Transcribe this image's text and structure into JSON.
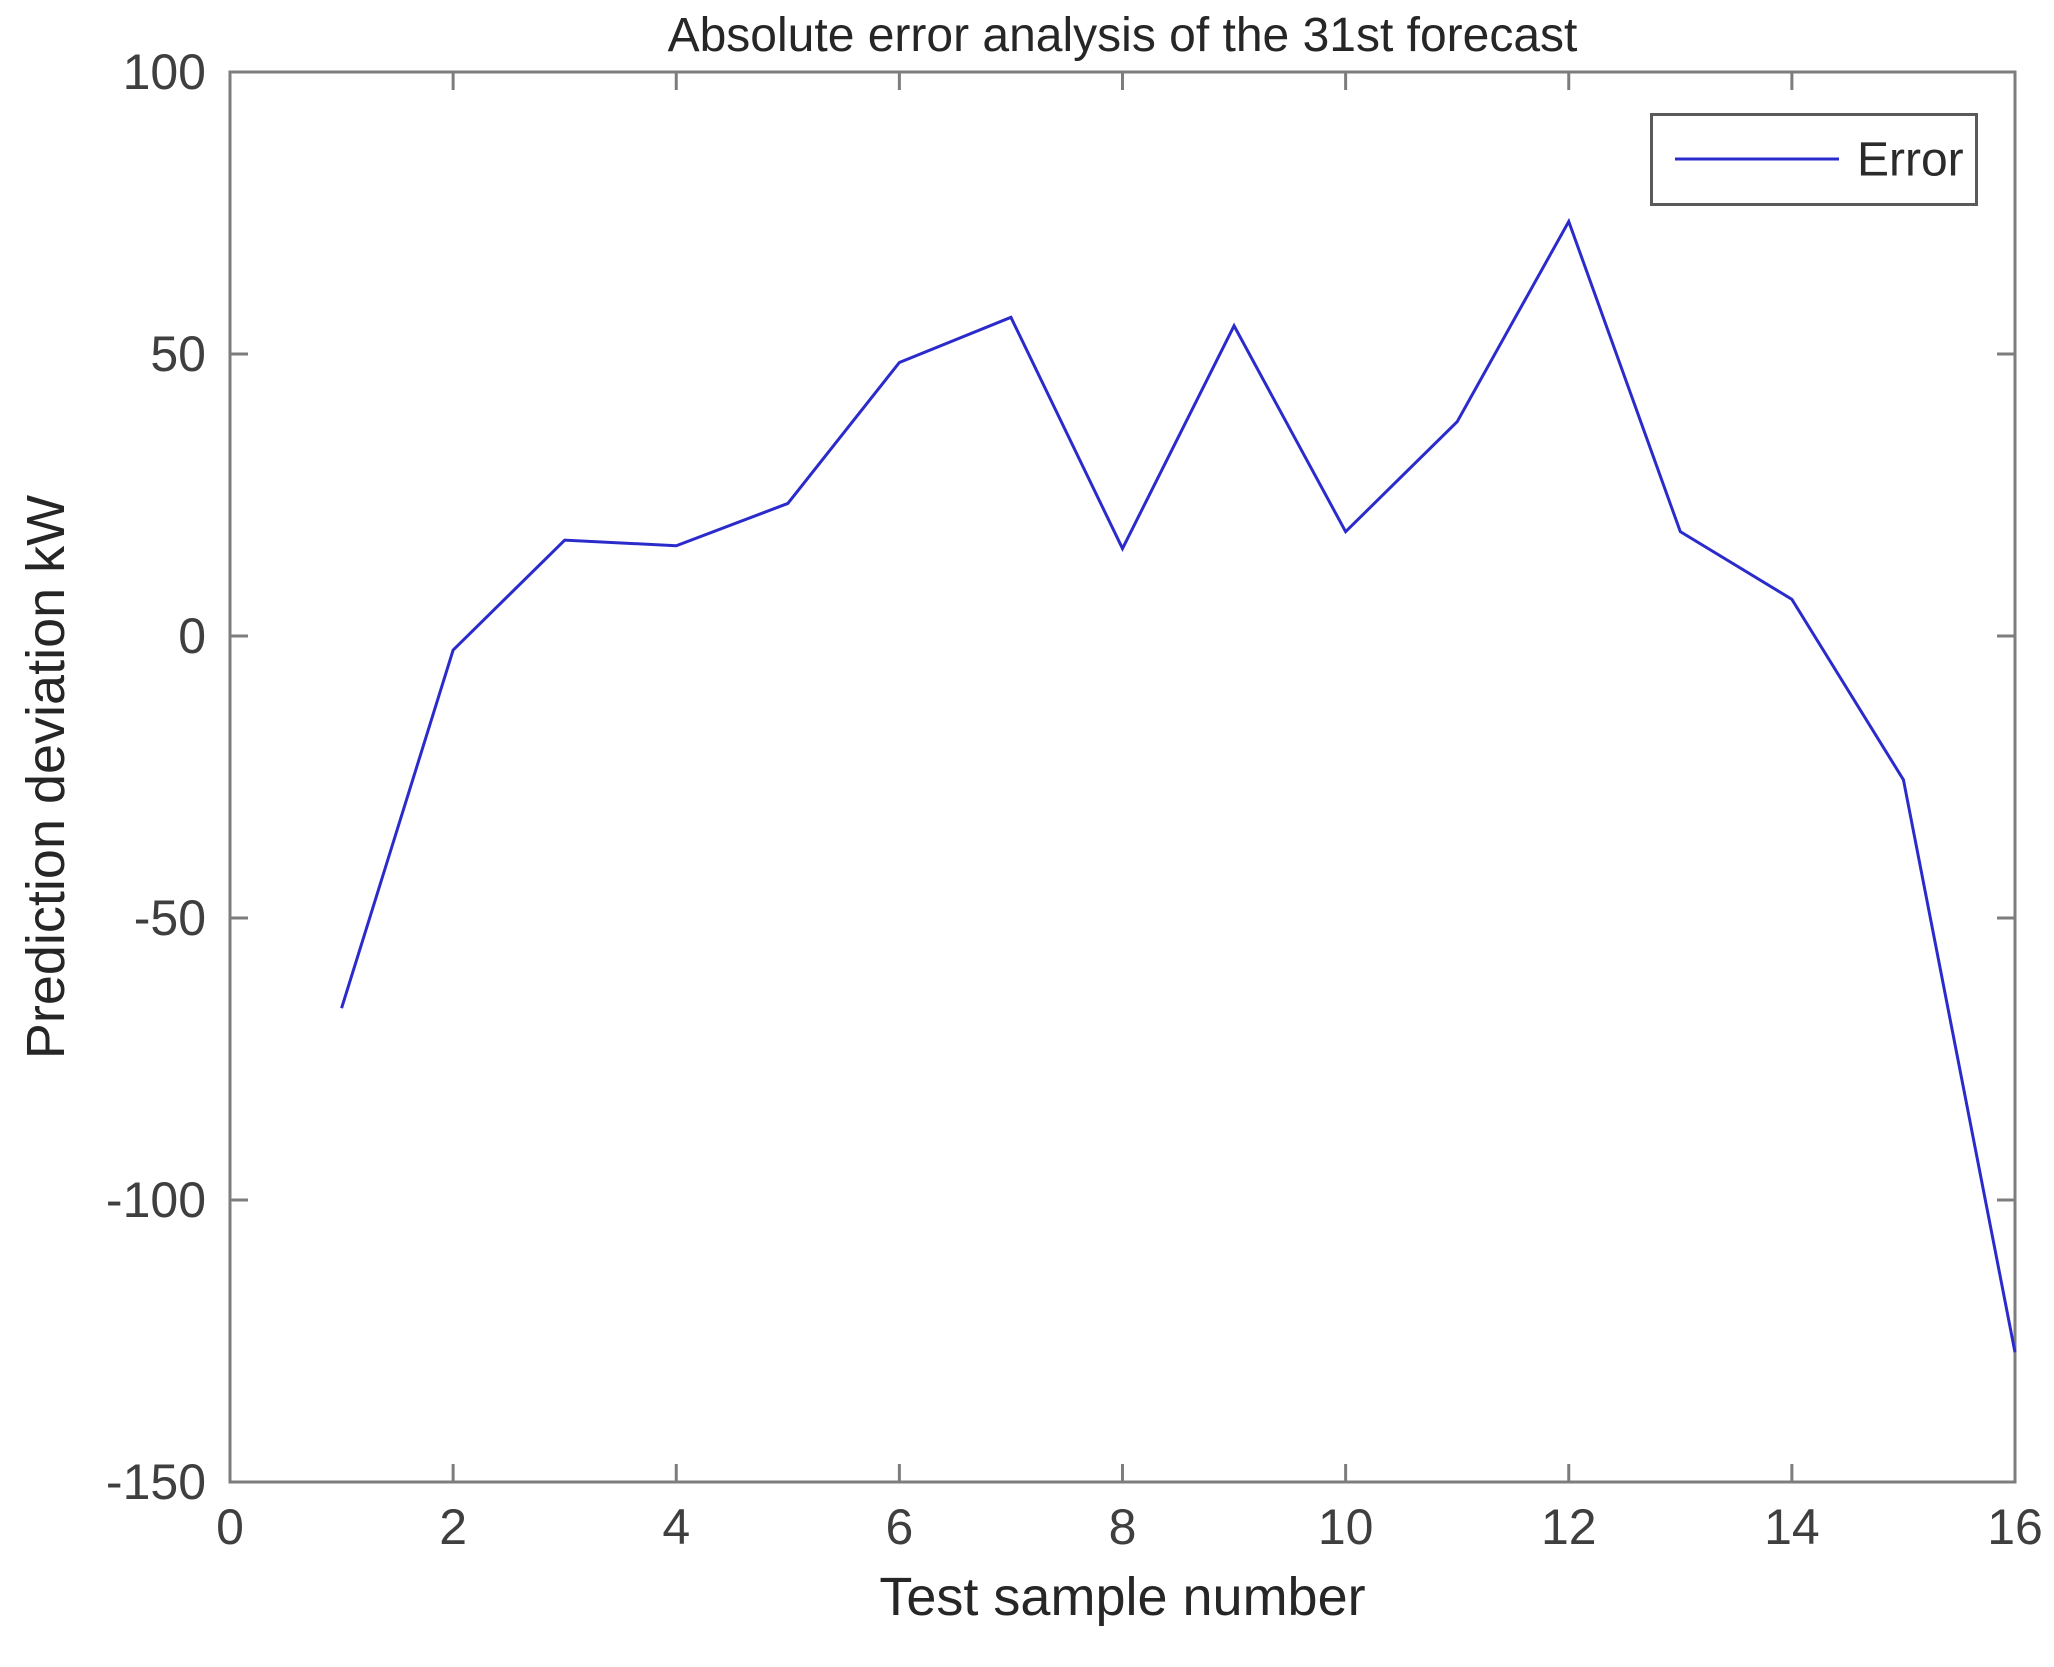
{
  "figure": {
    "background": "#ffffff"
  },
  "chart_data": {
    "type": "line",
    "title": "Absolute error analysis of the 31st forecast",
    "xlabel": "Test sample number",
    "ylabel": "Prediction deviation kW",
    "x": [
      1,
      2,
      3,
      4,
      5,
      6,
      7,
      8,
      9,
      10,
      11,
      12,
      13,
      14,
      15,
      16
    ],
    "series": [
      {
        "name": "Error",
        "color": "#2b2bcc",
        "values": [
          -66,
          -2.5,
          17,
          16,
          23.5,
          48.5,
          56.5,
          15.5,
          55,
          18.5,
          38,
          73.5,
          18.5,
          6.5,
          -25.5,
          -127
        ]
      }
    ],
    "xlim": [
      0,
      16
    ],
    "ylim": [
      -150,
      100
    ],
    "xticks": [
      0,
      2,
      4,
      6,
      8,
      10,
      12,
      14,
      16
    ],
    "yticks": [
      100,
      50,
      0,
      -50,
      -100,
      -150
    ],
    "grid": false,
    "legend": {
      "position": "top-right",
      "entries": [
        "Error"
      ]
    },
    "axis_color": "#7d7d7d",
    "tick_label_color": "#3f3f3f",
    "title_color": "#262626"
  }
}
